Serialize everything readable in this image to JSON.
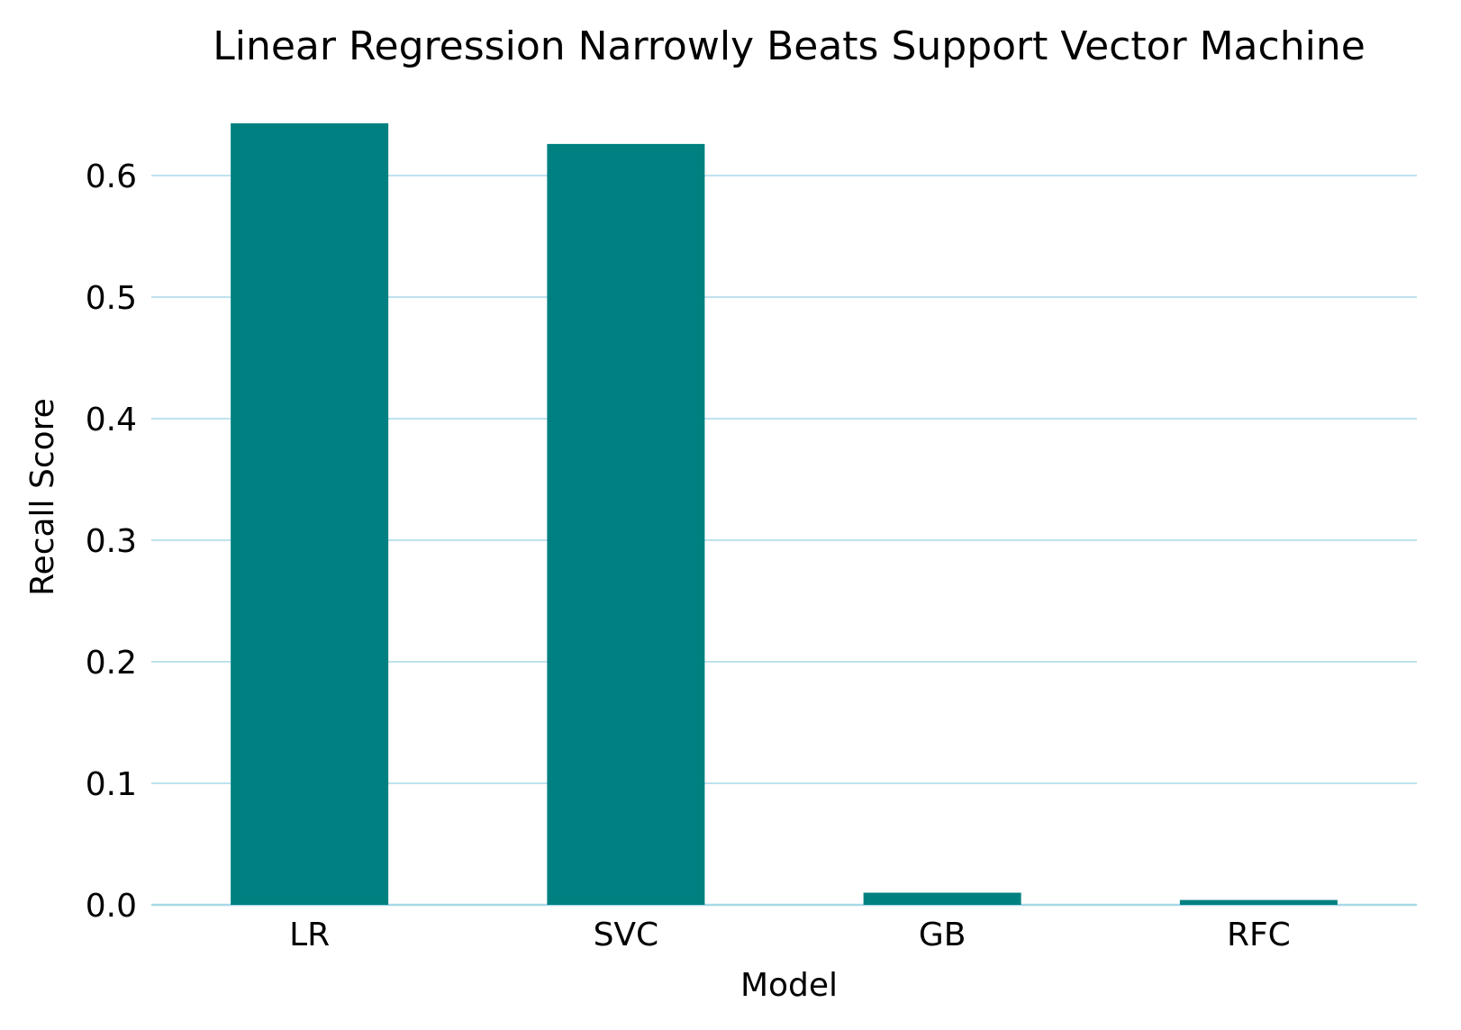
{
  "chart_data": {
    "type": "bar",
    "title": "Linear Regression Narrowly Beats Support Vector Machine",
    "xlabel": "Model",
    "ylabel": "Recall Score",
    "categories": [
      "LR",
      "SVC",
      "GB",
      "RFC"
    ],
    "values": [
      0.643,
      0.626,
      0.01,
      0.004
    ],
    "ylim": [
      0,
      0.66
    ],
    "yticks": [
      0.0,
      0.1,
      0.2,
      0.3,
      0.4,
      0.5,
      0.6
    ],
    "ytick_labels": [
      "0.0",
      "0.1",
      "0.2",
      "0.3",
      "0.4",
      "0.5",
      "0.6"
    ],
    "grid": true,
    "legend": "none",
    "colors": {
      "bar": "#008080",
      "grid": "#a8d8e8",
      "text": "#000000"
    }
  }
}
